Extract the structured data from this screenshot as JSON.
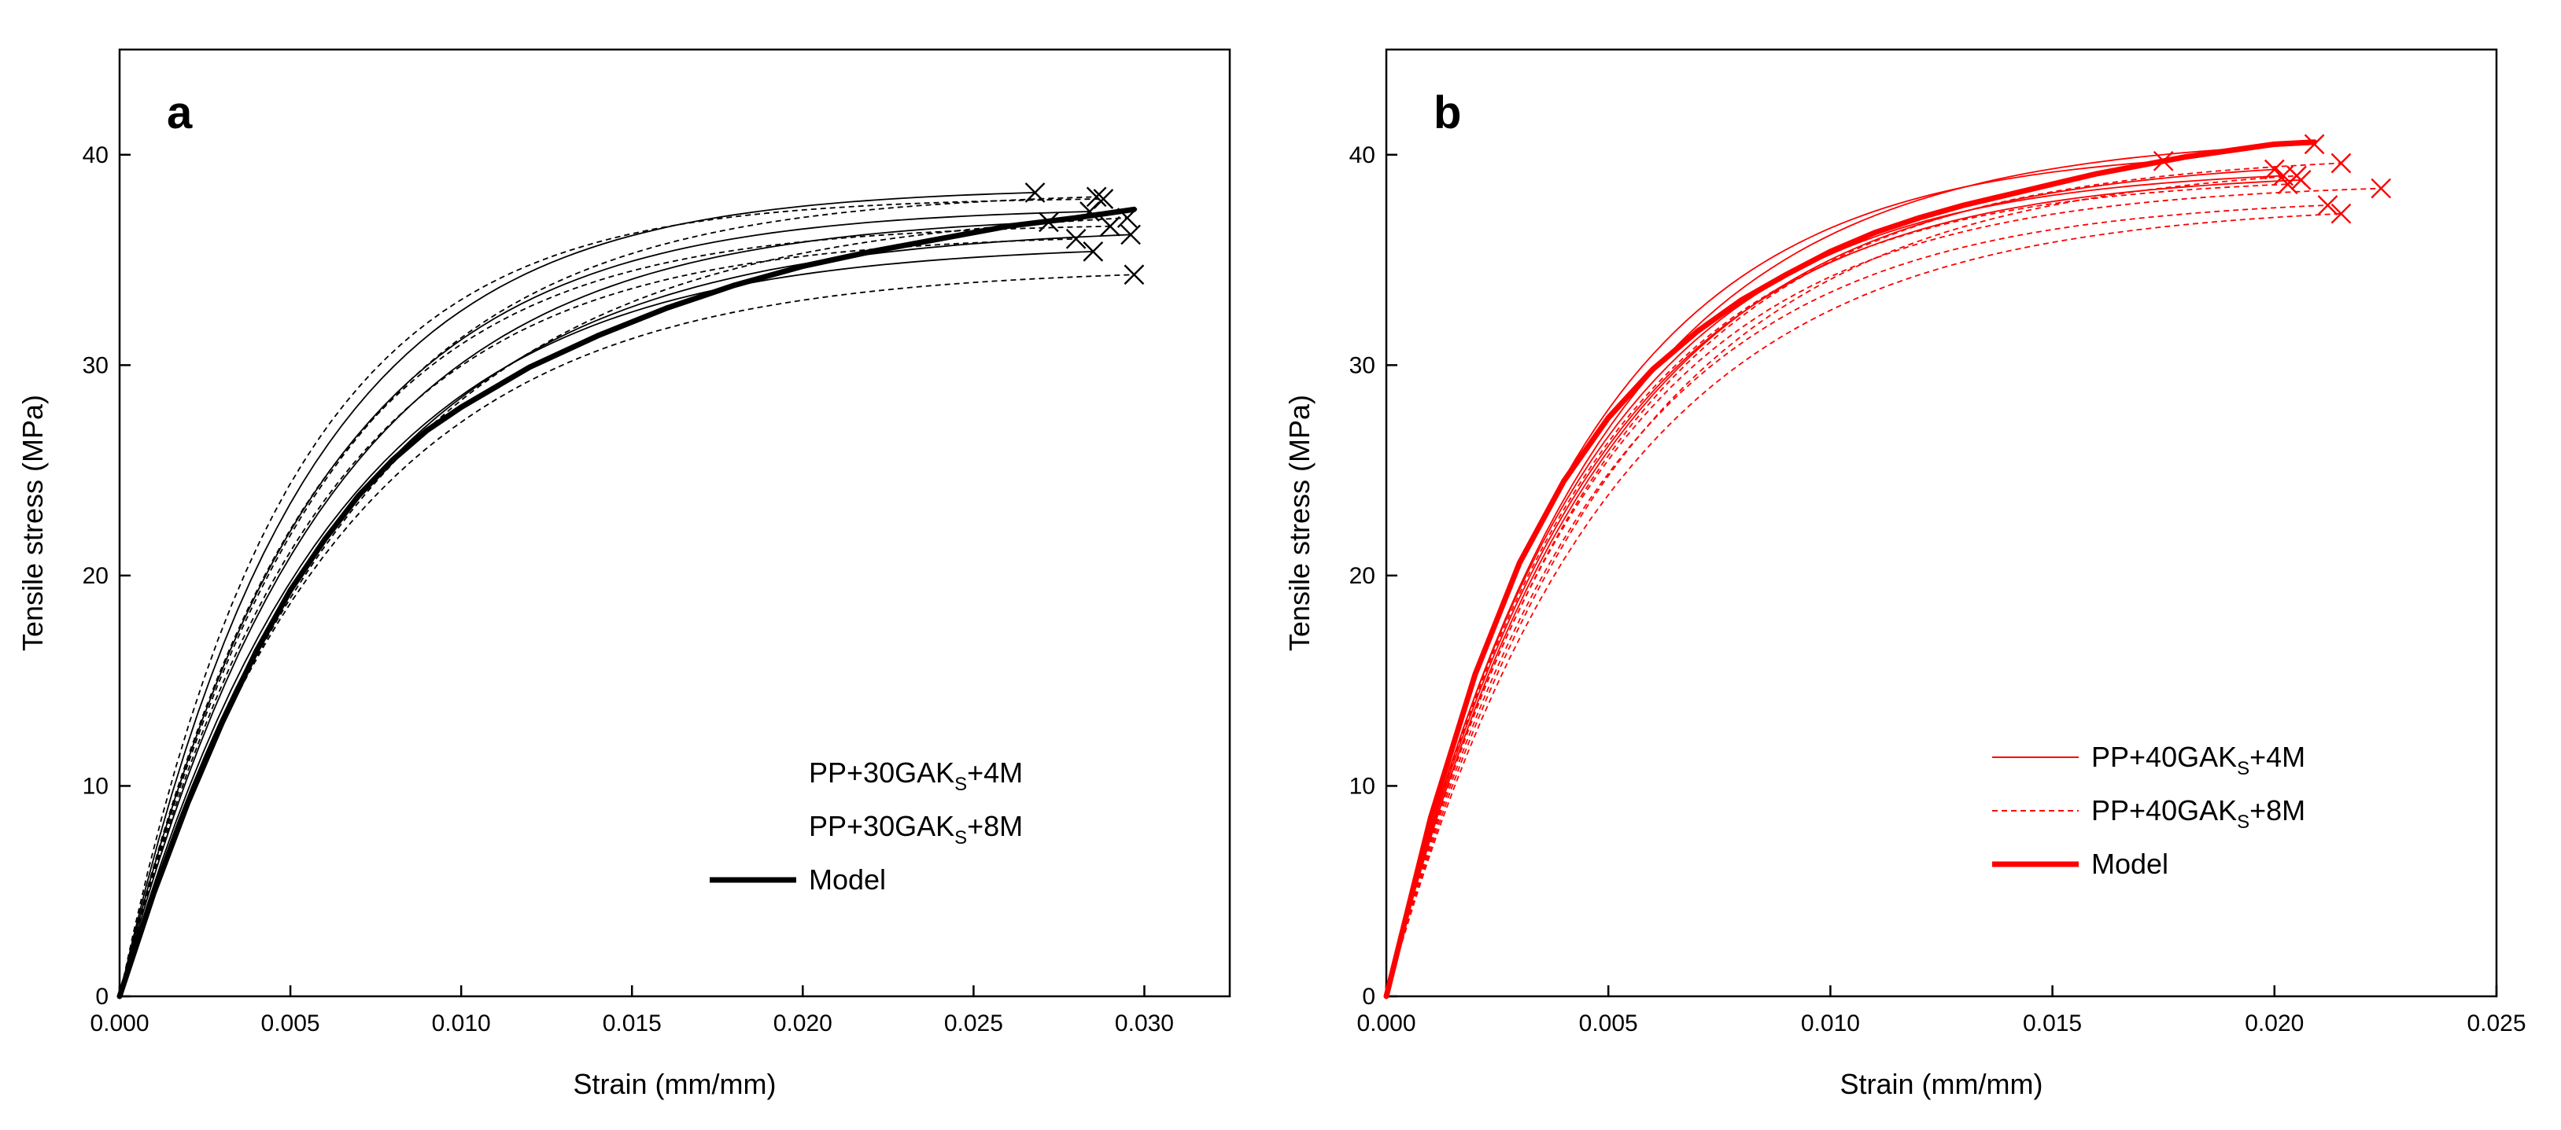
{
  "chart_data": [
    {
      "panel_label": "a",
      "type": "line",
      "xlabel": "Strain (mm/mm)",
      "ylabel": "Tensile stress (MPa)",
      "xlim": [
        0,
        0.0325
      ],
      "ylim": [
        0,
        45
      ],
      "xticks": [
        0,
        0.005,
        0.01,
        0.015,
        0.02,
        0.025,
        0.03
      ],
      "xtick_labels": [
        "0.000",
        "0.005",
        "0.010",
        "0.015",
        "0.020",
        "0.025",
        "0.030"
      ],
      "yticks": [
        0,
        10,
        20,
        30,
        40
      ],
      "ytick_labels": [
        "0",
        "10",
        "20",
        "30",
        "40"
      ],
      "grid": false,
      "legend_position": "bottom-right",
      "legend": [
        {
          "base": "PP+30GAK",
          "sub": "S",
          "tail": "+4M",
          "style": "solid",
          "color": "#000000"
        },
        {
          "base": "PP+30GAK",
          "sub": "S",
          "tail": "+8M",
          "style": "dashed",
          "color": "#000000"
        },
        {
          "base": "Model",
          "sub": "",
          "tail": "",
          "style": "thick",
          "color": "#000000"
        }
      ],
      "model": {
        "x": [
          0,
          0.001,
          0.002,
          0.003,
          0.004,
          0.005,
          0.006,
          0.007,
          0.008,
          0.009,
          0.01,
          0.012,
          0.014,
          0.016,
          0.018,
          0.02,
          0.022,
          0.024,
          0.026,
          0.028,
          0.0297
        ],
        "y": [
          0,
          4.9,
          9.2,
          13.0,
          16.4,
          19.3,
          21.7,
          23.8,
          25.5,
          26.9,
          28.0,
          29.9,
          31.4,
          32.7,
          33.8,
          34.7,
          35.4,
          36.0,
          36.6,
          37.0,
          37.4
        ]
      },
      "series_4M": [
        {
          "final": 38.2,
          "break_x": 0.0268,
          "k": 188
        },
        {
          "final": 37.3,
          "break_x": 0.0284,
          "k": 178
        },
        {
          "final": 36.8,
          "break_x": 0.0272,
          "k": 165
        },
        {
          "final": 35.4,
          "break_x": 0.0285,
          "k": 160
        },
        {
          "final": 36.2,
          "break_x": 0.0296,
          "k": 150
        }
      ],
      "series_8M": [
        {
          "final": 37.9,
          "break_x": 0.0288,
          "k": 205
        },
        {
          "final": 38.0,
          "break_x": 0.0286,
          "k": 170
        },
        {
          "final": 36.6,
          "break_x": 0.029,
          "k": 185
        },
        {
          "final": 34.3,
          "break_x": 0.0297,
          "k": 155
        },
        {
          "final": 37.0,
          "break_x": 0.0295,
          "k": 140
        },
        {
          "final": 36.0,
          "break_x": 0.028,
          "k": 175
        }
      ],
      "colors": {
        "samples": "#000000",
        "model": "#000000"
      }
    },
    {
      "panel_label": "b",
      "type": "line",
      "xlabel": "Strain (mm/mm)",
      "ylabel": "Tensile stress (MPa)",
      "xlim": [
        0,
        0.025
      ],
      "ylim": [
        0,
        45
      ],
      "xticks": [
        0,
        0.005,
        0.01,
        0.015,
        0.02,
        0.025
      ],
      "xtick_labels": [
        "0.000",
        "0.005",
        "0.010",
        "0.015",
        "0.020",
        "0.025"
      ],
      "yticks": [
        0,
        10,
        20,
        30,
        40
      ],
      "ytick_labels": [
        "0",
        "10",
        "20",
        "30",
        "40"
      ],
      "grid": false,
      "legend_position": "bottom-right",
      "legend": [
        {
          "base": "PP+40GAK",
          "sub": "S",
          "tail": "+4M",
          "style": "solid",
          "color": "#ff0000"
        },
        {
          "base": "PP+40GAK",
          "sub": "S",
          "tail": "+8M",
          "style": "dashed",
          "color": "#ff0000"
        },
        {
          "base": "Model",
          "sub": "",
          "tail": "",
          "style": "thick",
          "color": "#ff0000"
        }
      ],
      "model": {
        "x": [
          0,
          0.001,
          0.002,
          0.003,
          0.004,
          0.005,
          0.006,
          0.007,
          0.008,
          0.009,
          0.01,
          0.011,
          0.012,
          0.013,
          0.014,
          0.015,
          0.016,
          0.017,
          0.018,
          0.019,
          0.02,
          0.0209
        ],
        "y": [
          0,
          8.5,
          15.3,
          20.6,
          24.5,
          27.5,
          29.8,
          31.6,
          33.1,
          34.3,
          35.4,
          36.3,
          37.0,
          37.6,
          38.1,
          38.6,
          39.1,
          39.5,
          39.9,
          40.2,
          40.5,
          40.6
        ]
      },
      "series_4M": [
        {
          "final": 40.5,
          "break_x": 0.0209,
          "k": 215
        },
        {
          "final": 39.0,
          "break_x": 0.0202,
          "k": 225
        },
        {
          "final": 38.8,
          "break_x": 0.0206,
          "k": 220
        },
        {
          "final": 39.7,
          "break_x": 0.0175,
          "k": 235
        },
        {
          "final": 39.3,
          "break_x": 0.02,
          "k": 210
        }
      ],
      "series_8M": [
        {
          "final": 39.6,
          "break_x": 0.0215,
          "k": 205
        },
        {
          "final": 38.4,
          "break_x": 0.0224,
          "k": 215
        },
        {
          "final": 37.2,
          "break_x": 0.0215,
          "k": 200
        },
        {
          "final": 39.0,
          "break_x": 0.0205,
          "k": 195
        },
        {
          "final": 38.6,
          "break_x": 0.0203,
          "k": 225
        },
        {
          "final": 37.6,
          "break_x": 0.0212,
          "k": 212
        }
      ],
      "colors": {
        "samples": "#ff0000",
        "model": "#ff0000"
      }
    }
  ]
}
